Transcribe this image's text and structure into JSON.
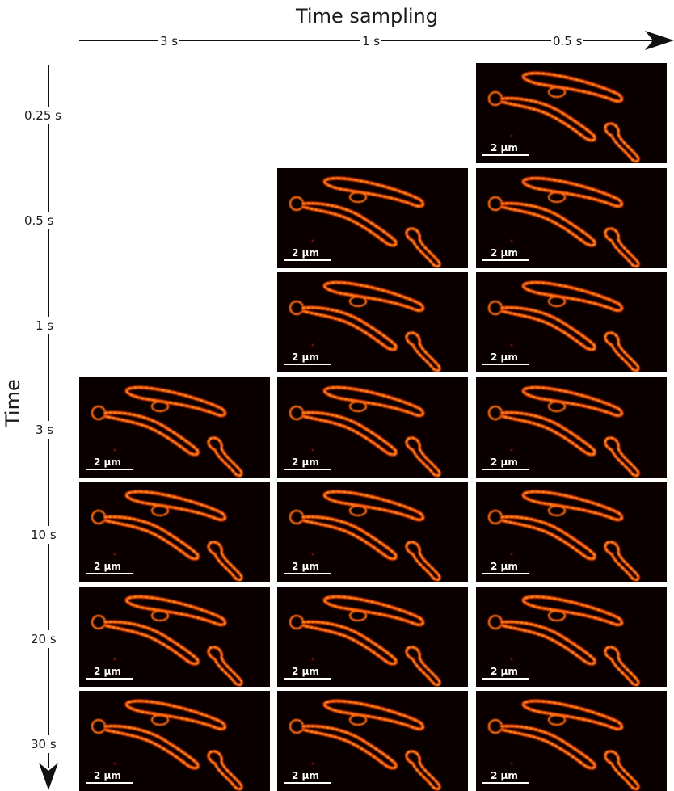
{
  "title": "Time sampling",
  "time_axis_label": "Time",
  "columns": [
    "3 s",
    "1 s",
    "0.5 s"
  ],
  "rows": [
    "0.25 s",
    "0.5 s",
    "1 s",
    "3 s",
    "10 s",
    "20 s",
    "30 s"
  ],
  "scale_bar_label": "2 µm",
  "colors": {
    "background": "#0a0000",
    "signal_core": "#ffd040",
    "signal_mid": "#ff6a10",
    "signal_dim": "#a01000"
  }
}
